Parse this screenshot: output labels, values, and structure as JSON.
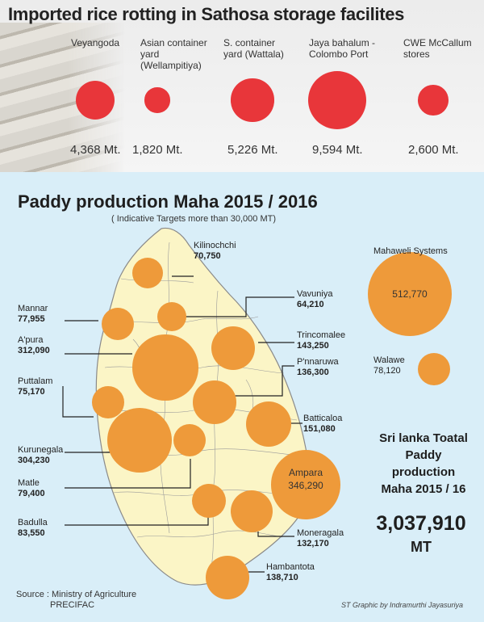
{
  "top": {
    "title": "Imported rice rotting in Sathosa storage facilites",
    "colors": {
      "bubble": "#e8363a"
    }
  },
  "bottom": {
    "title": "Paddy production Maha 2015 / 2016",
    "subtitle": "( Indicative Targets more than 30,000 MT)",
    "colors": {
      "bubble": "#ee9a3a",
      "map_fill": "#fbf5c6",
      "background": "#d9eef8"
    },
    "total_label_lines": [
      "Sri lanka Toatal",
      "Paddy",
      "production",
      "Maha 2015 / 16"
    ],
    "total_value": "3,037,910",
    "total_unit": "MT",
    "source_lines": [
      "Source : Ministry of Agriculture",
      "PRECIFAC"
    ],
    "credit": "ST Graphic by  Indramurthi Jayasuriya"
  },
  "chart_data": [
    {
      "type": "bubble",
      "title": "Imported rice rotting in Sathosa storage facilites",
      "unit": "Mt.",
      "categories": [
        "Veyangoda",
        "Asian container yard (Wellampitiya)",
        "S. container yard (Wattala)",
        "Jaya bahalum - Colombo Port",
        "CWE McCallum stores"
      ],
      "label_lines": [
        [
          "Veyangoda"
        ],
        [
          "Asian container",
          "yard",
          "(Wellampitiya)"
        ],
        [
          "S. container",
          "yard (Wattala)"
        ],
        [
          "Jaya bahalum -",
          "Colombo Port"
        ],
        [
          "CWE McCallum",
          "stores"
        ]
      ],
      "values": [
        4368,
        1820,
        5226,
        9594,
        2600
      ],
      "value_labels": [
        "4,368 Mt.",
        "1,820 Mt.",
        "5,226 Mt.",
        "9,594 Mt.",
        "2,600 Mt."
      ]
    },
    {
      "type": "bubble",
      "title": "Paddy production Maha 2015 / 2016",
      "subtitle": "( Indicative Targets more than 30,000 MT)",
      "unit": "MT",
      "districts": [
        {
          "name": "Kilinochchi",
          "value": 70750,
          "label": "70,750"
        },
        {
          "name": "Mannar",
          "value": 77955,
          "label": "77,955"
        },
        {
          "name": "Vavuniya",
          "value": 64210,
          "label": "64,210"
        },
        {
          "name": "A'pura",
          "value": 312090,
          "label": "312,090"
        },
        {
          "name": "Trincomalee",
          "value": 143250,
          "label": "143,250"
        },
        {
          "name": "P'nnaruwa",
          "value": 136300,
          "label": "136,300"
        },
        {
          "name": "Puttalam",
          "value": 75170,
          "label": "75,170"
        },
        {
          "name": "Batticaloa",
          "value": 151080,
          "label": "151,080"
        },
        {
          "name": "Kurunegala",
          "value": 304230,
          "label": "304,230"
        },
        {
          "name": "Matle",
          "value": 79400,
          "label": "79,400"
        },
        {
          "name": "Ampara",
          "value": 346290,
          "label": "346,290"
        },
        {
          "name": "Badulla",
          "value": 83550,
          "label": "83,550"
        },
        {
          "name": "Moneragala",
          "value": 132170,
          "label": "132,170"
        },
        {
          "name": "Hambantota",
          "value": 138710,
          "label": "138,710"
        }
      ],
      "systems": [
        {
          "name": "Mahaweli Systems",
          "value": 512770,
          "label": "512,770"
        },
        {
          "name": "Walawe",
          "value": 78120,
          "label": "78,120"
        }
      ],
      "total": {
        "value": 3037910,
        "label": "3,037,910"
      }
    }
  ]
}
